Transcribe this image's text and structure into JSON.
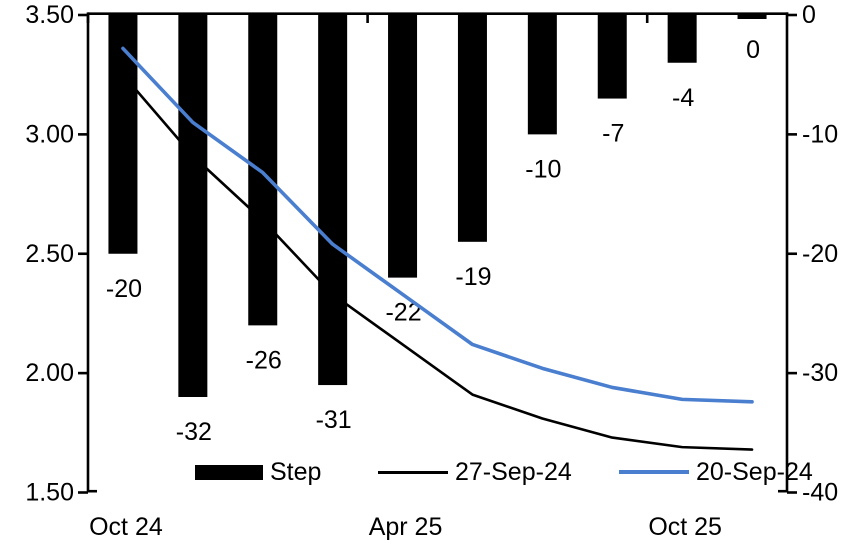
{
  "chart_data": {
    "type": "combo-bar-line",
    "title": "",
    "n_categories": 10,
    "grid": false,
    "background": "#ffffff",
    "x_axis": {
      "tick_labels": [
        "Oct 24",
        "Apr 25",
        "Oct 25"
      ],
      "tick_category_indices": [
        0,
        4,
        8
      ]
    },
    "left_axis": {
      "tick_labels": [
        "3.50",
        "3.00",
        "2.50",
        "2.00",
        "1.50"
      ],
      "tick_values": [
        3.5,
        3.0,
        2.5,
        2.0,
        1.5
      ],
      "min": 1.5,
      "max": 3.5
    },
    "right_axis": {
      "tick_labels": [
        "0",
        "-10",
        "-20",
        "-30",
        "-40"
      ],
      "tick_values": [
        0,
        -10,
        -20,
        -30,
        -40
      ],
      "min": -40,
      "max": 0
    },
    "bar_series": {
      "name": "Step",
      "axis": "right",
      "color": "#000000",
      "values": [
        -20,
        -32,
        -26,
        -31,
        -22,
        -19,
        -10,
        -7,
        -4,
        0
      ],
      "labels": [
        "-20",
        "-32",
        "-26",
        "-31",
        "-22",
        "-19",
        "-10",
        "-7",
        "-4",
        "0"
      ]
    },
    "line_series": [
      {
        "name": "27-Sep-24",
        "axis": "left",
        "color": "#000000",
        "stroke_width": 2.6,
        "values": [
          3.25,
          2.91,
          2.64,
          2.33,
          2.12,
          1.91,
          1.81,
          1.73,
          1.69,
          1.68
        ]
      },
      {
        "name": "20-Sep-24",
        "axis": "left",
        "color": "#4A7ECF",
        "stroke_width": 3.6,
        "values": [
          3.36,
          3.05,
          2.84,
          2.54,
          2.33,
          2.12,
          2.02,
          1.94,
          1.89,
          1.88
        ]
      }
    ],
    "legend": {
      "position": "bottom",
      "entries": [
        "Step",
        "27-Sep-24",
        "20-Sep-24"
      ]
    }
  },
  "colors": {
    "background": "#ffffff",
    "axis": "#000000",
    "bar": "#000000",
    "line_blue": "#4A7ECF",
    "line_black": "#000000"
  }
}
